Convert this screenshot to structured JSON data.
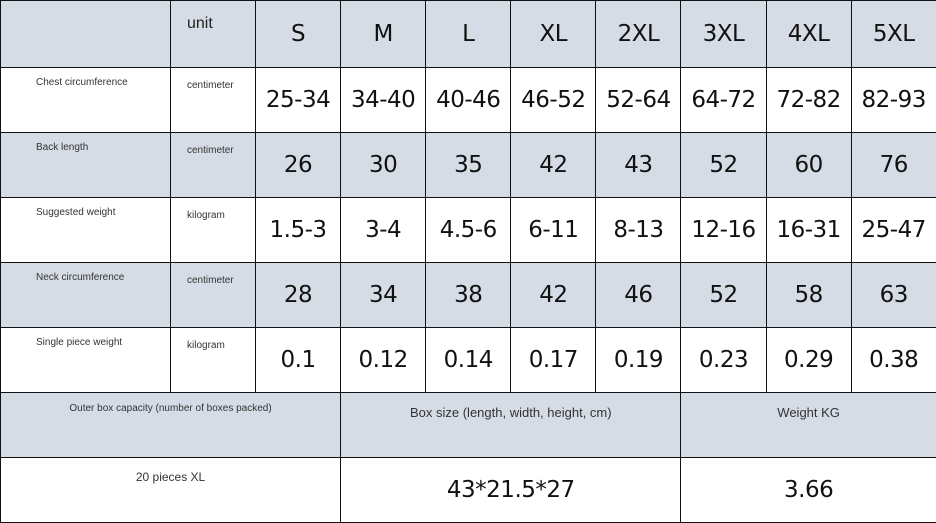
{
  "header": {
    "unit_label": "unit",
    "sizes": [
      "S",
      "M",
      "L",
      "XL",
      "2XL",
      "3XL",
      "4XL",
      "5XL"
    ]
  },
  "rows": [
    {
      "label": "Chest circumference",
      "unit": "centimeter",
      "values": [
        "25-34",
        "34-40",
        "40-46",
        "46-52",
        "52-64",
        "64-72",
        "72-82",
        "82-93"
      ]
    },
    {
      "label": "Back length",
      "unit": "centimeter",
      "values": [
        "26",
        "30",
        "35",
        "42",
        "43",
        "52",
        "60",
        "76"
      ]
    },
    {
      "label": "Suggested weight",
      "unit": "kilogram",
      "values": [
        "1.5-3",
        "3-4",
        "4.5-6",
        "6-11",
        "8-13",
        "12-16",
        "16-31",
        "25-47"
      ]
    },
    {
      "label": "Neck circumference",
      "unit": "centimeter",
      "values": [
        "28",
        "34",
        "38",
        "42",
        "46",
        "52",
        "58",
        "63"
      ]
    },
    {
      "label": "Single piece weight",
      "unit": "kilogram",
      "values": [
        "0.1",
        "0.12",
        "0.14",
        "0.17",
        "0.19",
        "0.23",
        "0.29",
        "0.38"
      ]
    }
  ],
  "packing": {
    "capacity_label": "Outer box capacity (number of boxes packed)",
    "box_size_label": "Box size (length, width, height, cm)",
    "weight_label": "Weight KG",
    "capacity_value": "20 pieces XL",
    "box_size_value": "43*21.5*27",
    "weight_value": "3.66"
  },
  "colors": {
    "shaded_row": "#d6dce5",
    "border": "#111111"
  }
}
